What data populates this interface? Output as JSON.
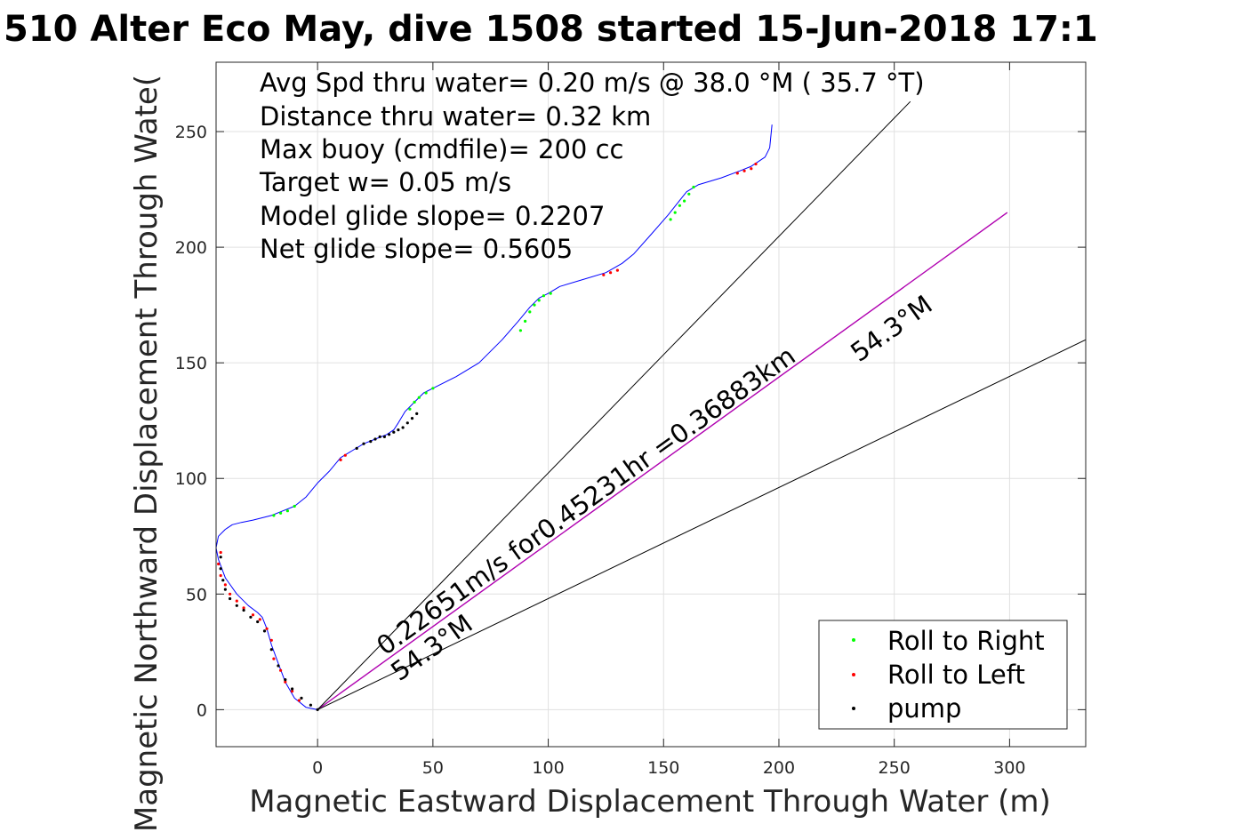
{
  "chart_data": {
    "type": "line",
    "title": "510 Alter Eco May, dive 1508 started 15-Jun-2018 17:1",
    "xlabel": "Magnetic Eastward Displacement Through Water (m)",
    "ylabel": "Magnetic Northward Displacement Through Wate(",
    "xlim": [
      -44,
      333
    ],
    "ylim": [
      -16,
      280
    ],
    "xticks": [
      0,
      50,
      100,
      150,
      200,
      250,
      300
    ],
    "yticks": [
      0,
      50,
      100,
      150,
      200,
      250
    ],
    "grid": true,
    "stats": [
      "Avg Spd thru water=  0.20 m/s @  38.0 °M ( 35.7 °T)",
      "Distance thru water=  0.32 km",
      "Max buoy (cmdfile)= 200 cc",
      "Target w= 0.05 m/s",
      "Model glide slope= 0.2207",
      "Net glide slope= 0.5605"
    ],
    "annotations": {
      "current": "0.22651m/s for0.45231hr =0.36883km",
      "heading_upper": "54.3°M",
      "heading_lower": "54.3°M"
    },
    "legend": {
      "placement": "bottom-right",
      "entries": [
        {
          "name": "Roll to Right",
          "color": "#00ff00"
        },
        {
          "name": "Roll to Left",
          "color": "#ff0000"
        },
        {
          "name": "pump",
          "color": "#000000"
        }
      ]
    },
    "colors": {
      "track": "#0000ff",
      "current": "#b000b0",
      "heading": "#000000"
    },
    "series": [
      {
        "name": "",
        "role": "track",
        "x": [
          0,
          -5,
          -10,
          -14,
          -17,
          -20,
          -22,
          -24,
          -26,
          -30,
          -35,
          -40,
          -43,
          -44,
          -43,
          -40,
          -37,
          -33,
          -28,
          -20,
          -15,
          -10,
          -5,
          0,
          5,
          10,
          15,
          20,
          25,
          30,
          33,
          35,
          38,
          42,
          46,
          50,
          60,
          70,
          80,
          87,
          92,
          96,
          100,
          105,
          115,
          125,
          132,
          137,
          145,
          152,
          156,
          160,
          165,
          175,
          183,
          188,
          191,
          194,
          196,
          197
        ],
        "y": [
          0,
          1,
          5,
          12,
          20,
          28,
          35,
          40,
          42,
          45,
          50,
          57,
          65,
          70,
          75,
          78,
          80,
          81,
          82,
          84,
          86,
          88,
          92,
          98,
          103,
          109,
          112,
          115,
          117,
          119,
          121,
          124,
          129,
          133,
          137,
          139,
          144,
          150,
          160,
          168,
          174,
          178,
          180,
          183,
          186,
          189,
          193,
          197,
          206,
          214,
          219,
          224,
          227,
          230,
          233,
          235,
          237,
          239,
          243,
          253
        ]
      },
      {
        "name": "",
        "role": "current",
        "x": [
          0,
          299
        ],
        "y": [
          0,
          215
        ]
      },
      {
        "name": "",
        "role": "heading",
        "x": [
          0,
          257
        ],
        "y": [
          0,
          263
        ]
      },
      {
        "name": "",
        "role": "heading",
        "x": [
          0,
          333
        ],
        "y": [
          0,
          160
        ]
      }
    ],
    "points": {
      "roll_right": {
        "x": [
          -19,
          -16,
          -13,
          -10,
          40,
          42,
          44,
          47,
          50,
          88,
          90,
          92,
          94,
          96,
          98,
          101,
          153,
          155,
          157,
          159,
          161,
          163
        ],
        "y": [
          84,
          85,
          86,
          88,
          130,
          133,
          135,
          137,
          139,
          164,
          168,
          172,
          175,
          177,
          179,
          180,
          212,
          215,
          218,
          220,
          223,
          226
        ]
      },
      "roll_left": {
        "x": [
          -42,
          -43,
          -42,
          -40,
          -38,
          -35,
          -32,
          -28,
          -25,
          -22,
          -20,
          -19,
          -16,
          -14,
          -11,
          -8,
          10,
          12,
          124,
          127,
          130,
          182,
          185,
          188,
          190
        ],
        "y": [
          68,
          63,
          58,
          54,
          50,
          47,
          44,
          41,
          39,
          35,
          30,
          22,
          17,
          12,
          8,
          4,
          108,
          110,
          188,
          189,
          190,
          232,
          233,
          234,
          236
        ]
      },
      "pump": {
        "x": [
          -42,
          -42,
          -41,
          -40,
          -38,
          -35,
          -32,
          -29,
          -26,
          -23,
          -20,
          -17,
          -14,
          -11,
          -7,
          -3,
          0,
          17,
          20,
          23,
          25,
          27,
          29,
          31,
          33,
          35,
          37,
          39,
          41,
          43
        ],
        "y": [
          66,
          61,
          56,
          52,
          48,
          45,
          43,
          40,
          38,
          34,
          26,
          19,
          13,
          9,
          5,
          2,
          0,
          113,
          115,
          116,
          117,
          118,
          118,
          119,
          120,
          121,
          122,
          124,
          126,
          128
        ]
      }
    }
  }
}
